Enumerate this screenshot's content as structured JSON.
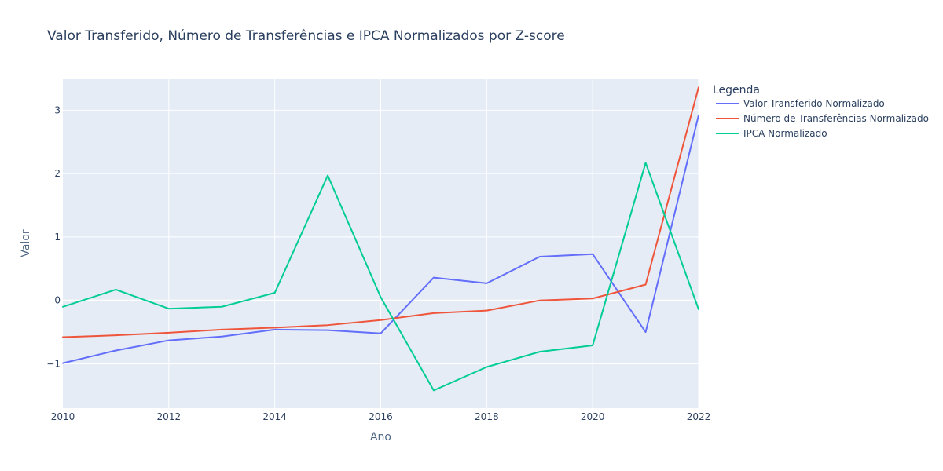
{
  "chart_data": {
    "type": "line",
    "title": "Valor Transferido, Número de Transferências e IPCA Normalizados por Z-score",
    "xlabel": "Ano",
    "ylabel": "Valor",
    "x": [
      2010,
      2011,
      2012,
      2013,
      2014,
      2015,
      2016,
      2017,
      2018,
      2019,
      2020,
      2021,
      2022
    ],
    "xlim": [
      2010,
      2022
    ],
    "ylim": [
      -1.7,
      3.5
    ],
    "x_ticks": [
      {
        "value": 2010,
        "label": "2010"
      },
      {
        "value": 2012,
        "label": "2012"
      },
      {
        "value": 2014,
        "label": "2014"
      },
      {
        "value": 2016,
        "label": "2016"
      },
      {
        "value": 2018,
        "label": "2018"
      },
      {
        "value": 2020,
        "label": "2020"
      },
      {
        "value": 2022,
        "label": "2022"
      }
    ],
    "y_ticks": [
      {
        "value": -1,
        "label": "−1"
      },
      {
        "value": 0,
        "label": "0"
      },
      {
        "value": 1,
        "label": "1"
      },
      {
        "value": 2,
        "label": "2"
      },
      {
        "value": 3,
        "label": "3"
      }
    ],
    "grid": true,
    "legend": {
      "title": "Legenda",
      "placement": "right"
    },
    "series": [
      {
        "name": "Valor Transferido Normalizado",
        "color": "#636efa",
        "values": [
          -0.99,
          -0.79,
          -0.63,
          -0.57,
          -0.46,
          -0.47,
          -0.52,
          0.36,
          0.27,
          0.69,
          0.73,
          -0.5,
          2.92
        ]
      },
      {
        "name": "Número de Transferências Normalizado",
        "color": "#ef553b",
        "values": [
          -0.58,
          -0.55,
          -0.51,
          -0.46,
          -0.43,
          -0.39,
          -0.31,
          -0.2,
          -0.16,
          0.0,
          0.03,
          0.25,
          3.36
        ]
      },
      {
        "name": "IPCA Normalizado",
        "color": "#00cc96",
        "values": [
          -0.1,
          0.17,
          -0.13,
          -0.1,
          0.12,
          1.97,
          0.05,
          -1.42,
          -1.05,
          -0.81,
          -0.71,
          2.17,
          -0.14
        ]
      }
    ]
  }
}
